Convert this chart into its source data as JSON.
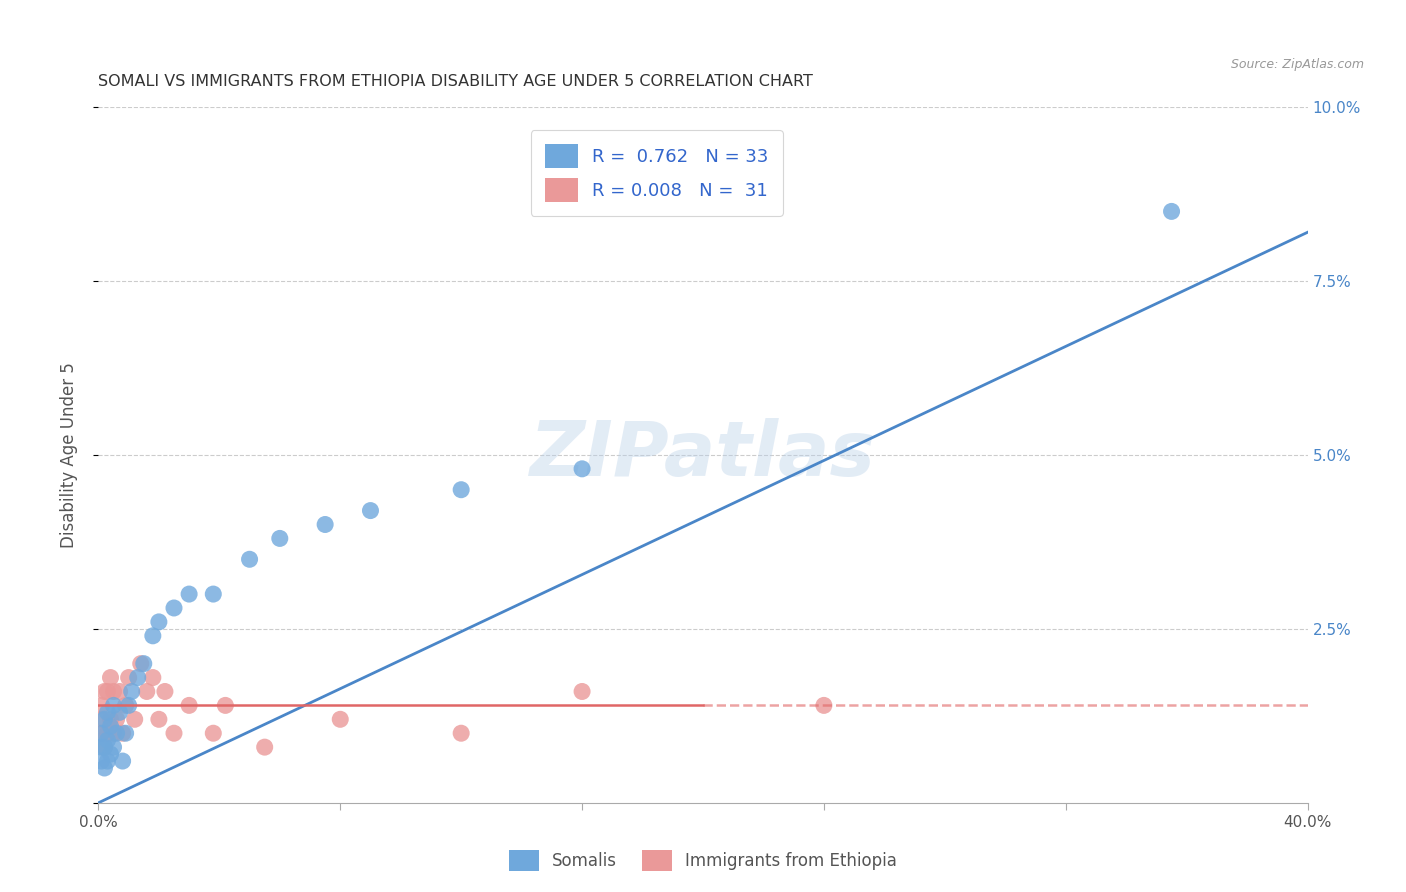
{
  "title": "SOMALI VS IMMIGRANTS FROM ETHIOPIA DISABILITY AGE UNDER 5 CORRELATION CHART",
  "source": "Source: ZipAtlas.com",
  "ylabel": "Disability Age Under 5",
  "xlim": [
    0.0,
    0.4
  ],
  "ylim": [
    0.0,
    0.1
  ],
  "xticks": [
    0.0,
    0.08,
    0.16,
    0.24,
    0.32,
    0.4
  ],
  "yticks": [
    0.0,
    0.025,
    0.05,
    0.075,
    0.1
  ],
  "xtick_labels": [
    "0.0%",
    "",
    "",
    "",
    "",
    "40.0%"
  ],
  "ytick_labels_right": [
    "",
    "2.5%",
    "5.0%",
    "7.5%",
    "10.0%"
  ],
  "watermark": "ZIPatlas",
  "blue_R": "0.762",
  "blue_N": "33",
  "pink_R": "0.008",
  "pink_N": "31",
  "blue_color": "#6fa8dc",
  "pink_color": "#ea9999",
  "blue_line_color": "#4a86c8",
  "pink_line_color": "#e06666",
  "background_color": "#ffffff",
  "grid_color": "#cccccc",
  "somali_x": [
    0.001,
    0.001,
    0.001,
    0.002,
    0.002,
    0.002,
    0.003,
    0.003,
    0.003,
    0.004,
    0.004,
    0.005,
    0.005,
    0.006,
    0.007,
    0.008,
    0.009,
    0.01,
    0.011,
    0.013,
    0.015,
    0.018,
    0.02,
    0.025,
    0.03,
    0.038,
    0.05,
    0.06,
    0.075,
    0.09,
    0.12,
    0.16,
    0.355
  ],
  "somali_y": [
    0.006,
    0.008,
    0.01,
    0.005,
    0.008,
    0.012,
    0.006,
    0.009,
    0.013,
    0.007,
    0.011,
    0.008,
    0.014,
    0.01,
    0.013,
    0.006,
    0.01,
    0.014,
    0.016,
    0.018,
    0.02,
    0.024,
    0.026,
    0.028,
    0.03,
    0.03,
    0.035,
    0.038,
    0.04,
    0.042,
    0.045,
    0.048,
    0.085
  ],
  "ethiopia_x": [
    0.001,
    0.001,
    0.001,
    0.002,
    0.002,
    0.003,
    0.003,
    0.004,
    0.004,
    0.005,
    0.005,
    0.006,
    0.007,
    0.008,
    0.009,
    0.01,
    0.012,
    0.014,
    0.016,
    0.018,
    0.02,
    0.022,
    0.025,
    0.03,
    0.038,
    0.042,
    0.055,
    0.08,
    0.12,
    0.16,
    0.24
  ],
  "ethiopia_y": [
    0.01,
    0.012,
    0.014,
    0.008,
    0.016,
    0.01,
    0.016,
    0.012,
    0.018,
    0.01,
    0.016,
    0.012,
    0.016,
    0.01,
    0.014,
    0.018,
    0.012,
    0.02,
    0.016,
    0.018,
    0.012,
    0.016,
    0.01,
    0.014,
    0.01,
    0.014,
    0.008,
    0.012,
    0.01,
    0.016,
    0.014
  ],
  "blue_line_x": [
    0.0,
    0.4
  ],
  "blue_line_y": [
    0.0,
    0.082
  ],
  "pink_line_x": [
    0.0,
    0.4
  ],
  "pink_line_y": [
    0.014,
    0.014
  ]
}
